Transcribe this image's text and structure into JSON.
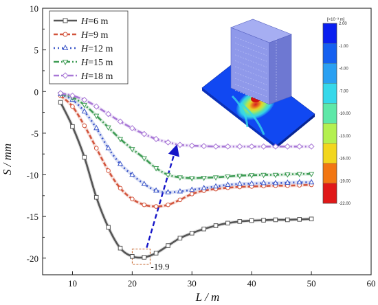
{
  "chart_data": {
    "type": "line",
    "xlabel": "L / m",
    "ylabel": "S / mm",
    "xlim": [
      5,
      60
    ],
    "ylim": [
      -22,
      10
    ],
    "xticks": [
      10,
      20,
      30,
      40,
      50,
      60
    ],
    "yticks": [
      10,
      5,
      0,
      -5,
      -10,
      -15,
      -20
    ],
    "grid": false,
    "legend_position": "top-left",
    "series": [
      {
        "name": "H=6 m",
        "label_var": "H",
        "label_rest": "=6 m",
        "color": "#555555",
        "marker": "square",
        "dash": "solid",
        "x": [
          8,
          10,
          12,
          14,
          16,
          18,
          20,
          22,
          24,
          26,
          28,
          30,
          32,
          34,
          36,
          38,
          40,
          42,
          44,
          46,
          48,
          50
        ],
        "y": [
          -1.3,
          -4.2,
          -7.9,
          -12.7,
          -16.3,
          -18.8,
          -19.8,
          -19.9,
          -19.4,
          -18.5,
          -17.6,
          -17.0,
          -16.5,
          -16.1,
          -15.8,
          -15.6,
          -15.5,
          -15.45,
          -15.4,
          -15.4,
          -15.35,
          -15.3
        ]
      },
      {
        "name": "H=9 m",
        "label_var": "H",
        "label_rest": "=9 m",
        "color": "#d2543c",
        "marker": "circle",
        "dash": "6,3",
        "x": [
          8,
          10,
          12,
          14,
          16,
          18,
          20,
          22,
          24,
          26,
          28,
          30,
          32,
          34,
          36,
          38,
          40,
          42,
          44,
          46,
          48,
          50
        ],
        "y": [
          -0.5,
          -1.8,
          -4.1,
          -6.8,
          -9.5,
          -11.6,
          -12.9,
          -13.6,
          -13.8,
          -13.6,
          -13.0,
          -12.3,
          -11.9,
          -11.7,
          -11.55,
          -11.45,
          -11.4,
          -11.35,
          -11.3,
          -11.3,
          -11.25,
          -11.2
        ]
      },
      {
        "name": "H=12 m",
        "label_var": "H",
        "label_rest": "=12 m",
        "color": "#3a55c8",
        "marker": "triangle",
        "dash": "2,4",
        "x": [
          8,
          10,
          12,
          14,
          16,
          18,
          20,
          22,
          24,
          26,
          28,
          30,
          32,
          34,
          36,
          38,
          40,
          42,
          44,
          46,
          48,
          50
        ],
        "y": [
          -0.3,
          -1.0,
          -2.4,
          -4.4,
          -6.8,
          -8.7,
          -10.0,
          -11.1,
          -11.9,
          -12.1,
          -12.0,
          -11.8,
          -11.6,
          -11.4,
          -11.2,
          -11.1,
          -11.05,
          -11.0,
          -11.0,
          -10.95,
          -10.9,
          -10.9
        ]
      },
      {
        "name": "H=15 m",
        "label_var": "H",
        "label_rest": "=15 m",
        "color": "#3f9c55",
        "marker": "down-triangle",
        "dash": "8,3,2,3",
        "x": [
          8,
          10,
          12,
          14,
          16,
          18,
          20,
          22,
          24,
          26,
          28,
          30,
          32,
          34,
          36,
          38,
          40,
          42,
          44,
          46,
          48,
          50
        ],
        "y": [
          -0.3,
          -0.7,
          -1.6,
          -2.9,
          -4.3,
          -5.7,
          -6.9,
          -8.0,
          -9.2,
          -10.0,
          -10.3,
          -10.4,
          -10.35,
          -10.3,
          -10.2,
          -10.1,
          -10.05,
          -10.0,
          -10.0,
          -9.95,
          -9.9,
          -9.9
        ]
      },
      {
        "name": "H=18 m",
        "label_var": "H",
        "label_rest": "=18 m",
        "color": "#a877d6",
        "marker": "diamond",
        "dash": "8,3,2,3,2,3",
        "x": [
          8,
          10,
          12,
          14,
          16,
          18,
          20,
          22,
          24,
          26,
          28,
          30,
          32,
          34,
          36,
          38,
          40,
          42,
          44,
          46,
          48,
          50
        ],
        "y": [
          -0.2,
          -0.5,
          -1.0,
          -1.8,
          -2.7,
          -3.6,
          -4.4,
          -5.1,
          -5.7,
          -6.1,
          -6.4,
          -6.5,
          -6.55,
          -6.6,
          -6.6,
          -6.6,
          -6.6,
          -6.6,
          -6.6,
          -6.6,
          -6.6,
          -6.6
        ]
      }
    ],
    "annotations": [
      {
        "text": "-19.9",
        "x": 21.5,
        "y": -19.9
      }
    ],
    "colorbar": {
      "title": "[×10⁻³ m]",
      "labels": [
        "2.00",
        "-1.00",
        "-4.00",
        "-7.00",
        "-10.00",
        "-13.00",
        "-16.00",
        "-19.00",
        "-22.00"
      ],
      "colors": [
        "#0a1ff0",
        "#1560f0",
        "#2aa0f2",
        "#36d8ea",
        "#5ee8a8",
        "#b4f050",
        "#f2d61e",
        "#f27612",
        "#e01818"
      ]
    }
  }
}
